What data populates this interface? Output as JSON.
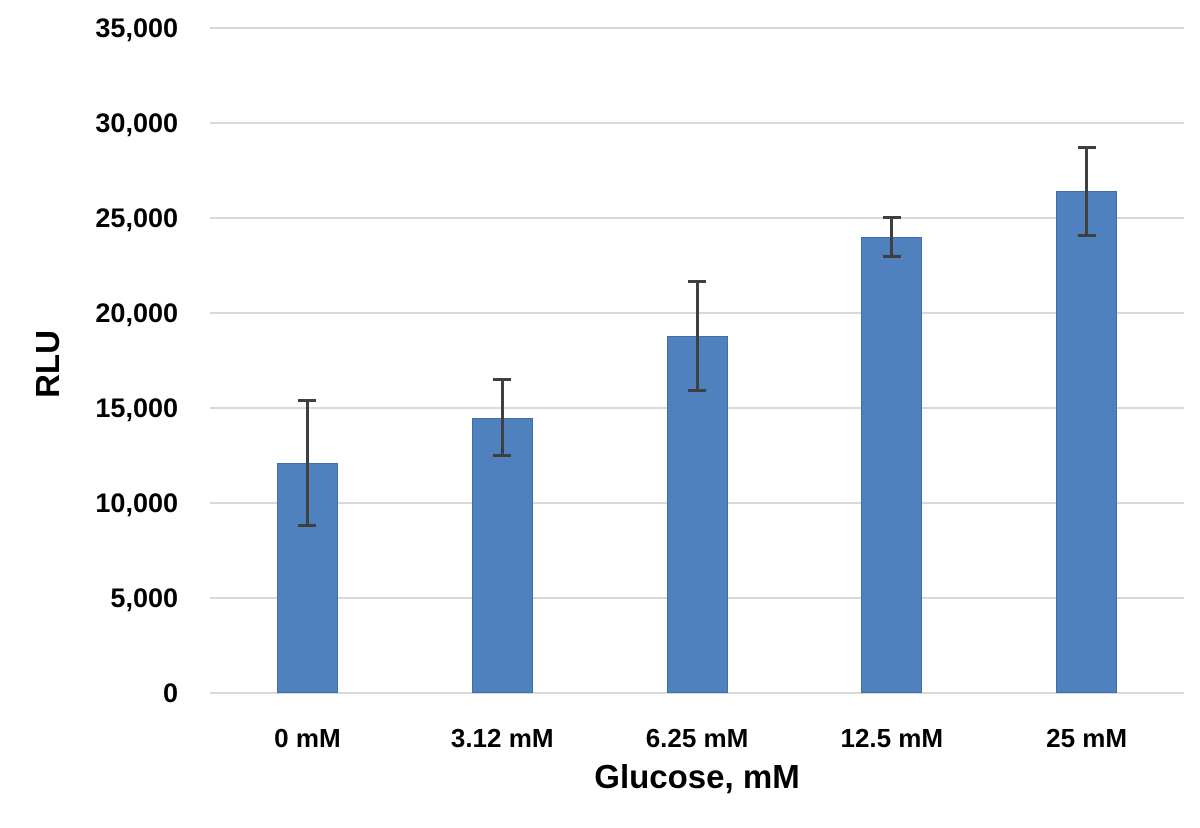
{
  "chart_data": {
    "type": "bar",
    "title": "",
    "xlabel": "Glucose, mM",
    "ylabel": "RLU",
    "categories": [
      "0 mM",
      "3.12 mM",
      "6.25 mM",
      "12.5 mM",
      "25 mM"
    ],
    "values": [
      12100,
      14500,
      18800,
      24000,
      26400
    ],
    "error_bars": [
      3250,
      1950,
      2850,
      1000,
      2300
    ],
    "ylim": [
      0,
      35000
    ],
    "ytick_step": 5000,
    "ytick_labels": [
      "0",
      "5,000",
      "10,000",
      "15,000",
      "20,000",
      "25,000",
      "30,000",
      "35,000"
    ],
    "grid": true,
    "legend_position": "none",
    "colors": {
      "bar_fill": "#4E81BD",
      "bar_border": "#3F6FAA",
      "error_bar": "#3F3F3F",
      "gridline": "#D9D9D9",
      "axis_line": "#D9D9D9",
      "text": "#000000",
      "background": "#FFFFFF"
    }
  }
}
